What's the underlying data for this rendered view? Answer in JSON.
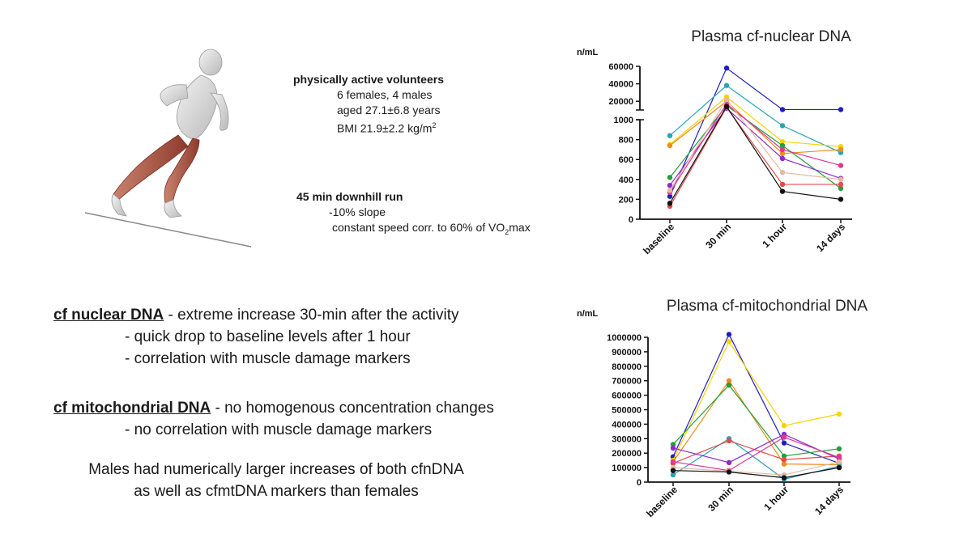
{
  "volunteers": {
    "heading": "physically active volunteers",
    "line1": "6 females, 4 males",
    "line2": "aged 27.1±6.8 years",
    "line3_prefix": "BMI 21.9±2.2 kg/m",
    "line3_sup": "2"
  },
  "run": {
    "heading": "45 min downhill run",
    "line1": "-10% slope",
    "line2_prefix": "constant speed corr. to 60% of VO",
    "line2_sub": "2",
    "line2_suffix": "max"
  },
  "findings": {
    "nuclear_term": "cf nuclear DNA",
    "nuclear_text": " - extreme increase 30-min after the activity",
    "nuclear_b1": "-  quick drop to baseline levels after 1 hour",
    "nuclear_b2": "-  correlation with muscle damage markers",
    "mito_term": "cf mitochondrial DNA",
    "mito_text": " - no homogenous concentration changes",
    "mito_b1": "-  no correlation with muscle damage markers",
    "conclusion1": "Males had numerically larger increases of both cfnDNA",
    "conclusion2": "as well as cfmtDNA markers than females"
  },
  "chart_data": [
    {
      "type": "line",
      "title": "Plasma cf-nuclear DNA",
      "ylabel": "n/mL",
      "categories": [
        "baseline",
        "30 min",
        "1 hour",
        "14 days"
      ],
      "y_axis_break": true,
      "lower_ylim": [
        0,
        1000
      ],
      "lower_ticks": [
        "0",
        "200",
        "400",
        "600",
        "800",
        "1000"
      ],
      "upper_ylim": [
        10000,
        60000
      ],
      "upper_ticks": [
        "20000",
        "40000",
        "60000"
      ],
      "series": [
        {
          "color": "#1f1fbf",
          "values": [
            230,
            58000,
            10500,
            10500
          ]
        },
        {
          "color": "#2aa3b3",
          "values": [
            840,
            38000,
            940,
            670
          ]
        },
        {
          "color": "#f7d400",
          "values": [
            750,
            25000,
            780,
            730
          ]
        },
        {
          "color": "#f28a1c",
          "values": [
            740,
            20000,
            660,
            700
          ]
        },
        {
          "color": "#22a03a",
          "values": [
            420,
            15000,
            740,
            310
          ]
        },
        {
          "color": "#8e2cc8",
          "values": [
            340,
            12000,
            610,
            410
          ]
        },
        {
          "color": "#e0379a",
          "values": [
            270,
            17000,
            700,
            540
          ]
        },
        {
          "color": "#e5b9a0",
          "values": [
            290,
            22000,
            470,
            400
          ]
        },
        {
          "color": "#e44a4a",
          "values": [
            130,
            13000,
            350,
            350
          ]
        },
        {
          "color": "#111111",
          "values": [
            160,
            14000,
            280,
            200
          ]
        }
      ]
    },
    {
      "type": "line",
      "title": "Plasma cf-mitochondrial DNA",
      "ylabel": "n/mL",
      "categories": [
        "baseline",
        "30 min",
        "1 hour",
        "14 days"
      ],
      "ylim": [
        0,
        1000000
      ],
      "ticks": [
        "0",
        "100000",
        "200000",
        "300000",
        "400000",
        "500000",
        "600000",
        "700000",
        "800000",
        "900000",
        "1000000"
      ],
      "series": [
        {
          "color": "#1f1fbf",
          "values": [
            175000,
            1020000,
            270000,
            130000
          ]
        },
        {
          "color": "#f7d400",
          "values": [
            150000,
            970000,
            390000,
            470000
          ]
        },
        {
          "color": "#f28a1c",
          "values": [
            140000,
            700000,
            125000,
            120000
          ]
        },
        {
          "color": "#22a03a",
          "values": [
            260000,
            670000,
            180000,
            230000
          ]
        },
        {
          "color": "#2aa3b3",
          "values": [
            50000,
            300000,
            20000,
            110000
          ]
        },
        {
          "color": "#e44a4a",
          "values": [
            130000,
            285000,
            155000,
            180000
          ]
        },
        {
          "color": "#8e2cc8",
          "values": [
            235000,
            135000,
            330000,
            160000
          ]
        },
        {
          "color": "#e0379a",
          "values": [
            140000,
            80000,
            310000,
            170000
          ]
        },
        {
          "color": "#e5b9a0",
          "values": [
            100000,
            75000,
            50000,
            140000
          ]
        },
        {
          "color": "#111111",
          "values": [
            80000,
            70000,
            30000,
            100000
          ]
        }
      ]
    }
  ]
}
